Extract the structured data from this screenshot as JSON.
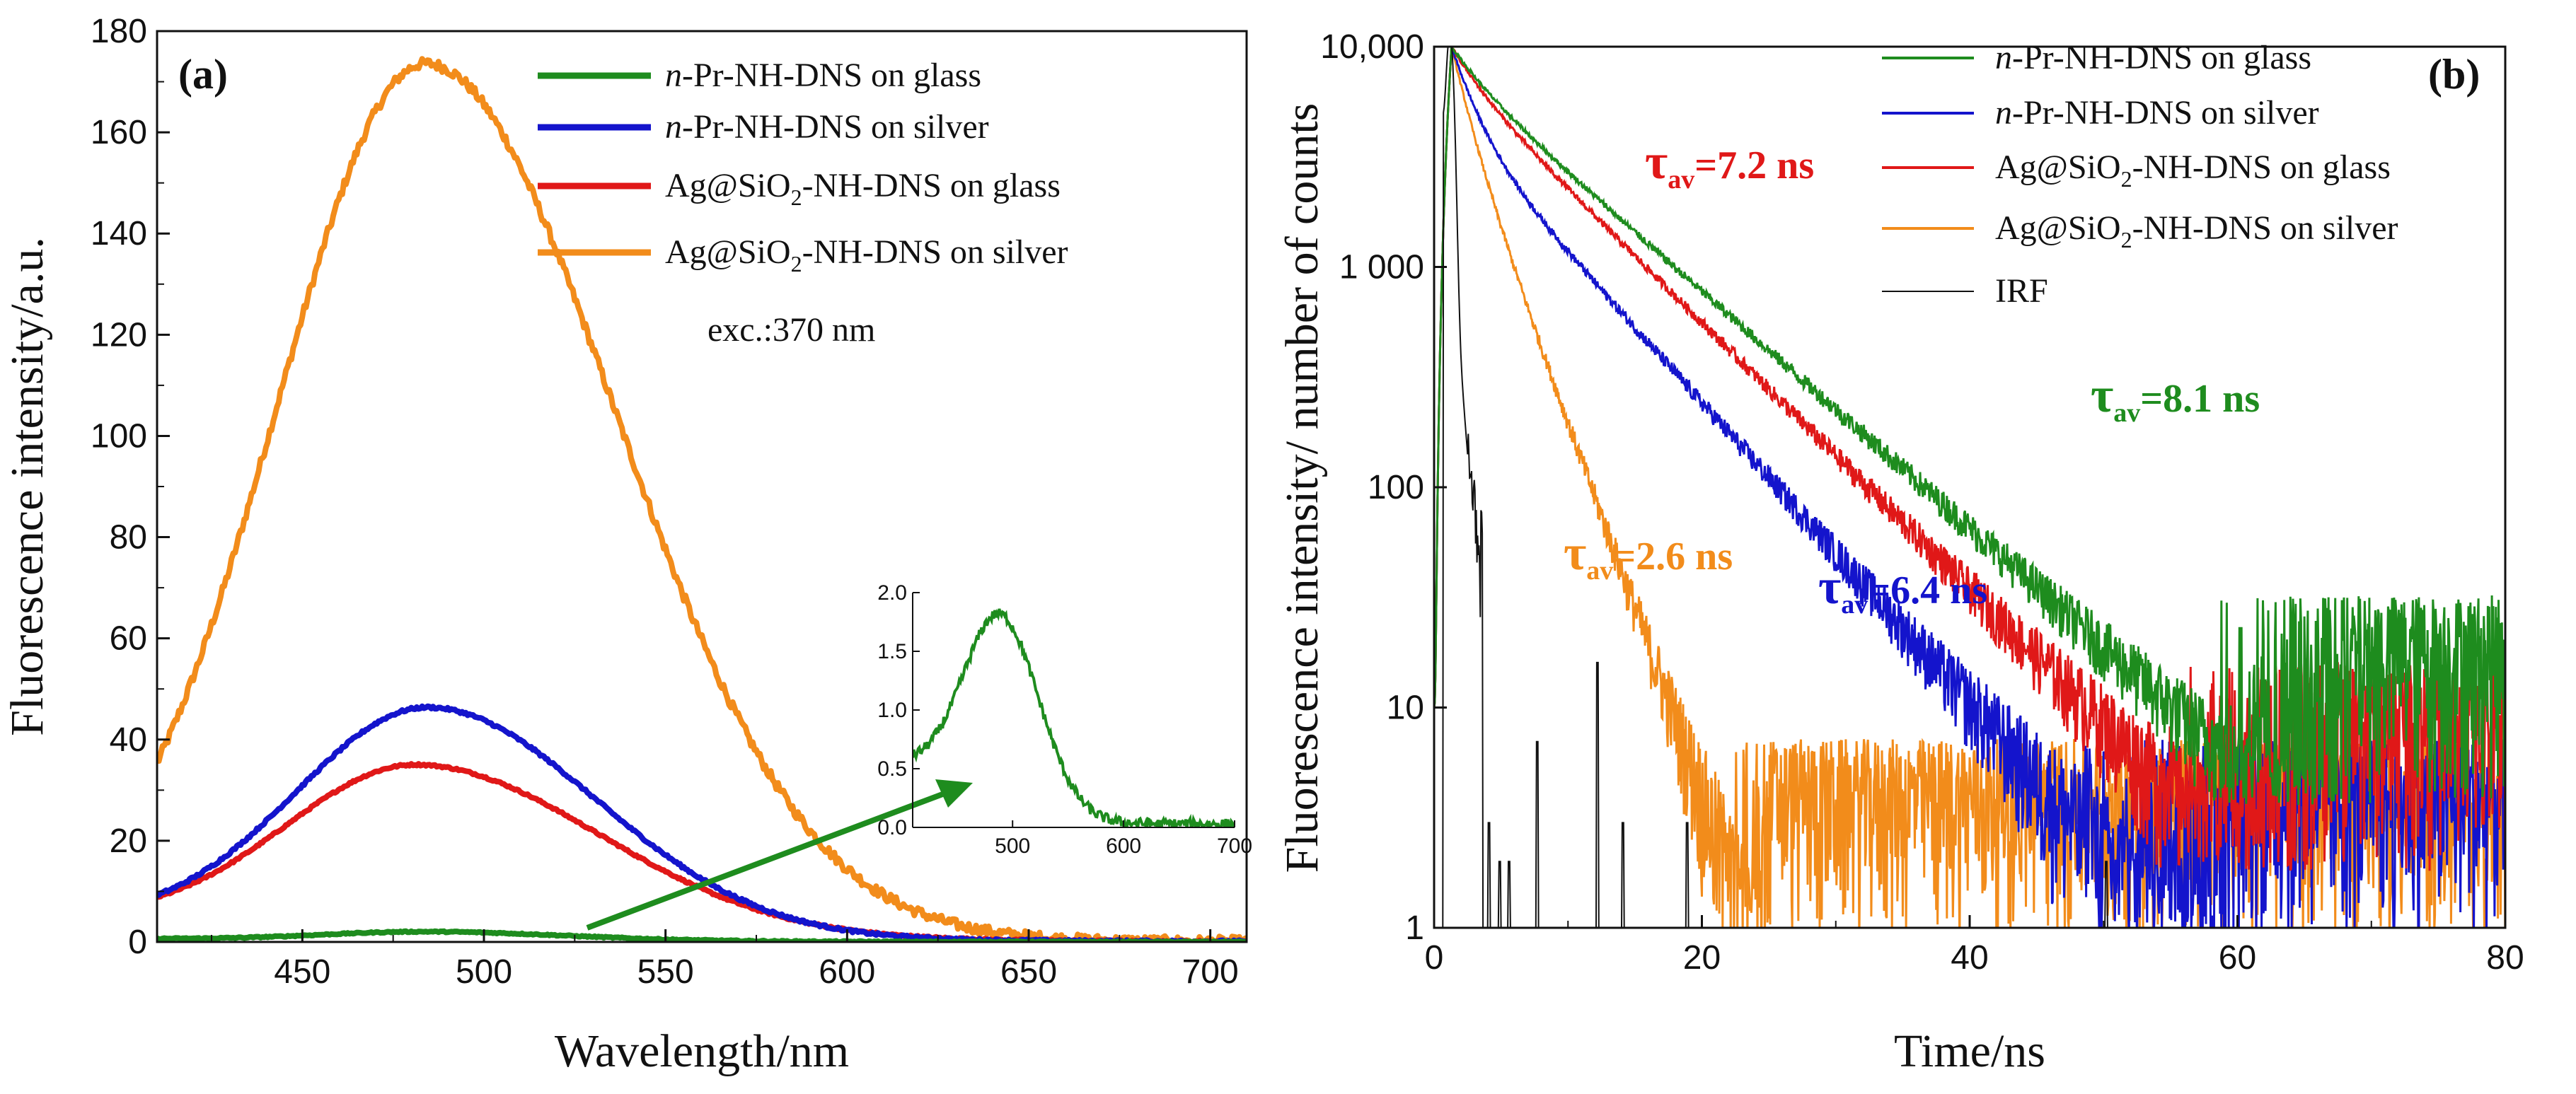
{
  "chart_data": [
    {
      "id": "a",
      "type": "line",
      "panel_label": "(a)",
      "xlabel": "Wavelength/nm",
      "ylabel": "Fluorescence intensity/a.u.",
      "xlim": [
        410,
        710
      ],
      "ylim": [
        0,
        180
      ],
      "xticks": [
        450,
        500,
        550,
        600,
        650,
        700
      ],
      "yticks": [
        0,
        20,
        40,
        60,
        80,
        100,
        120,
        140,
        160,
        180
      ],
      "legend_position": "top-right",
      "annotation": "exc.:370 nm",
      "series": [
        {
          "name_prefix": "n",
          "name_rest": "-Pr-NH-DNS on glass",
          "color": "#1e8c1e",
          "peak": 1.8,
          "center": 485,
          "left_width": 30,
          "right_width": 38,
          "baseline": 0.6
        },
        {
          "name_prefix": "n",
          "name_rest": "-Pr-NH-DNS on silver",
          "color": "#1414cc",
          "peak": 45,
          "center": 485,
          "left_width": 37,
          "right_width": 46,
          "baseline": 3.5
        },
        {
          "name_prefix": "Ag@SiO",
          "name_sub": "2",
          "name_rest": "-NH-DNS on glass",
          "color": "#e01818",
          "peak": 33.5,
          "center": 482,
          "left_width": 37,
          "right_width": 50,
          "baseline": 3.8
        },
        {
          "name_prefix": "Ag@SiO",
          "name_sub": "2",
          "name_rest": "-NH-DNS on silver",
          "color": "#f28c1b",
          "peak": 173,
          "center": 484,
          "left_width": 41,
          "right_width": 52,
          "baseline": 1.5
        }
      ],
      "inset": {
        "xlim": [
          410,
          700
        ],
        "ylim": [
          0,
          2.0
        ],
        "xticks": [
          500,
          600,
          700
        ],
        "yticks": [
          0.0,
          0.5,
          1.0,
          1.5,
          2.0
        ],
        "ytick_labels": [
          "0.0",
          "0.5",
          "1.0",
          "1.5",
          "2.0"
        ],
        "series_color": "#1e8c1e",
        "peak": 1.82,
        "center": 487,
        "width": 34,
        "baseline_left": 0.55,
        "baseline_right": 0.03
      }
    },
    {
      "id": "b",
      "type": "line",
      "yscale": "log",
      "panel_label": "(b)",
      "xlabel": "Time/ns",
      "ylabel": "Fluorescence intensity/ number of counts",
      "xlim": [
        0,
        80
      ],
      "ylim": [
        1,
        10000
      ],
      "xticks": [
        0,
        20,
        40,
        60,
        80
      ],
      "yticks": [
        1,
        10,
        100,
        1000,
        10000
      ],
      "ytick_labels": [
        "1",
        "10",
        "100",
        "1 000",
        "10,000"
      ],
      "legend_position": "top-right",
      "series": [
        {
          "name_prefix": "n",
          "name_rest": "-Pr-NH-DNS on glass",
          "color": "#1e8c1e",
          "tau": 8.1,
          "fast_tau": 2.2,
          "fast_frac": 0.22,
          "noise_floor": 18
        },
        {
          "name_prefix": "n",
          "name_rest": "-Pr-NH-DNS on silver",
          "color": "#1414cc",
          "tau": 6.4,
          "fast_tau": 1.6,
          "fast_frac": 0.55,
          "noise_floor": 4
        },
        {
          "name_prefix": "Ag@SiO",
          "name_sub": "2",
          "name_rest": "-NH-DNS on glass",
          "color": "#e01818",
          "tau": 7.2,
          "fast_tau": 2.0,
          "fast_frac": 0.25,
          "noise_floor": 9
        },
        {
          "name_prefix": "Ag@SiO",
          "name_sub": "2",
          "name_rest": "-NH-DNS on silver",
          "color": "#f28c1b",
          "tau": 2.6,
          "fast_tau": 1.2,
          "fast_frac": 0.45,
          "noise_floor": 4
        },
        {
          "name_prefix": "IRF",
          "name_rest": "",
          "color": "#111111",
          "irf": true
        }
      ],
      "annotations": [
        {
          "symbol": "τ",
          "sub": "av",
          "text": "=7.2 ns",
          "color": "#e01818"
        },
        {
          "symbol": "τ",
          "sub": "av",
          "text": "=8.1 ns",
          "color": "#1e8c1e"
        },
        {
          "symbol": "τ",
          "sub": "av",
          "text": "=2.6 ns",
          "color": "#f28c1b"
        },
        {
          "symbol": "τ",
          "sub": "av",
          "text": "=6.4 ns",
          "color": "#1414cc"
        }
      ]
    }
  ]
}
